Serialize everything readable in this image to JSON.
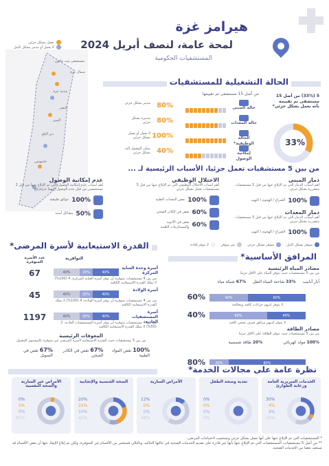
{
  "header": {
    "brand": "هيرامز غزة",
    "title": "لمحة عامة، لنصف أبريل 2024",
    "subtitle": "المستشفيات الحكومية"
  },
  "map": {
    "legend": [
      "يعمل بشكل جزئي",
      "لا يعمل أو مدمر بشكل كامل"
    ],
    "labels": [
      "شمال غزة",
      "مدينة غزة",
      "دير البلح",
      "خانيونس",
      "رفح",
      "النصر",
      "اليمن",
      "مستشفى بيت حانون"
    ]
  },
  "operational": {
    "title": "الحالة التشغيلية للمستشفيات",
    "note": "من أصل 15 مستشفى تم تقييمها",
    "summary": "5 (33%) من أصل 15 مستشفى تم تقييمه بأنه يعمل بشكل جزئي*",
    "donut_value": "33%",
    "donut_fraction": 0.33,
    "rows": [
      {
        "label": "حالة المبنى",
        "pct": "80%",
        "status": "مدمر بشكل جزئي",
        "on": 8
      },
      {
        "label": "حالة المعدات",
        "pct": "80%",
        "status": "مدمرة بشكل جزئي",
        "on": 8
      },
      {
        "label": "الحالة الوظيفية*",
        "pct": "100%",
        "status": "لا يعمل أو يعمل بشكل جزئي",
        "on": 10
      },
      {
        "label": "إمكانية الوصول",
        "pct": "40%",
        "status": "يمكن الوصول إليه بشكل جزئي",
        "on": 4
      }
    ]
  },
  "reasons": {
    "title": "من بين 5 مستشفيات تعمل جزئيا، الأسباب الرئيسية لـ ...",
    "cols": [
      {
        "head": "دمار المبنى",
        "desc": "أهم أسباب الدمار التي تم الإبلاغ عنها من قبل 5 مستشفيات متضررة بشكل جزئي",
        "items": [
          {
            "pct": "100%",
            "label": "الصراع / الهجوم / النهب"
          }
        ]
      },
      {
        "head": "الاختلال الوظيفي",
        "desc": "أهم أسباب الاختلال الوظيفي التي تم الإبلاغ عنها من قبل 5 مستشفيات تعمل بشكل جزئي",
        "items": [
          {
            "pct": "100%",
            "label": "نقص المعدات الطبية"
          },
          {
            "pct": "60%",
            "label": "نقص في الكادر الصحي"
          },
          {
            "pct": "60%",
            "label": "نقص في الأدوية والمستلزمات الطبية"
          }
        ]
      },
      {
        "head": "عدم إمكانية الوصول",
        "desc": "أهم أسباب عدم إمكانية الوصول التي تم الإبلاغ عنها من قبل 2 مستشفيين من قبل عدم الوصول إليهما جزئيا",
        "items": [
          {
            "pct": "100%",
            "label": "عوائق طبيعية"
          },
          {
            "pct": "50%",
            "label": "مشاكل أمنية"
          }
        ]
      }
    ],
    "equip": {
      "head": "دمار المعدات",
      "desc": "أهم أسباب الدمار التي تم الإبلاغ عنها من قبل 5 مستشفيات متضررة بشكل جزئي",
      "items": [
        {
          "pct": "100%",
          "label": "الصراع / الهجوم / النهب"
        }
      ]
    }
  },
  "utilities": {
    "title": "المرافق الأساسية*",
    "legend": [
      "متوفر بشكل كامل",
      "متوفر بشكل جزئي",
      "غير متوفر",
      "لا تتوفر إفادة"
    ],
    "water": {
      "head": "مصادر المياه الرئيسية",
      "note": "من بين 5 مستشفيات حيث تتوفر المياه على الأقل جزئيا",
      "labels": [
        {
          "pct": "67%",
          "text": "شبكة مياه"
        },
        {
          "pct": "33%",
          "text": "شاحنة المياه النقل"
        },
        {
          "pct": "",
          "text": "آبار أنابيب"
        }
      ],
      "bars": [
        {
          "value": "60%",
          "segs": [
            40,
            60
          ],
          "caption": "لا يتوفر لديهم خزانات كافية ومعالجة"
        },
        {
          "value": "40%",
          "segs": [
            60,
            40
          ],
          "caption": "لا يتوفر لديهم مرافق صرف صحي كافية"
        }
      ]
    },
    "power": {
      "head": "مصادر الطاقة",
      "note": "من بين 5 مستشفيات حيث تتوفر الطاقة على الأقل جزئيا",
      "labels": [
        {
          "pct": "100%",
          "text": "مولد كهربائي"
        },
        {
          "pct": "20%",
          "text": "طاقة شمسية"
        }
      ],
      "bar": {
        "value": "80%",
        "segs": [
          20,
          80
        ],
        "caption": "لا يتوفر لديهم طاقة كافية ومستمرة"
      }
    }
  },
  "capacity": {
    "title": "القدرة الاستيعابية لأسرة المرضى*",
    "col_head": "التوافرية",
    "count_head": "عدد الأسرة المتوفرة",
    "rows": [
      {
        "name": "أسرة وحدة العناية المركزة",
        "count": "67",
        "segs": [
          40,
          20,
          40
        ],
        "note": "من بين 4 مستشفيات متوفرة أن توفر أسرة العناية المركزة، 4 (100%) لا تملك القدرة الاستيعابية الكافية"
      },
      {
        "name": "أسرة الولادة",
        "count": "45",
        "segs": [
          40,
          20,
          40
        ],
        "note": "من بين 4 مستشفيات متوفرة أن توفر أسرة الولادة، 4 (100%) لا تملك القدرة الاستيعابية الكافية"
      },
      {
        "name": "أسرة المستشفيات العادية",
        "count": "1197",
        "segs": [
          40,
          20,
          40
        ],
        "note": "من بين 4 مستشفيات متوفرة أن توفر أسرة المستشفيات العادية، 2 (50%) لا تملك القدرة الاستيعابية الكافية"
      }
    ],
    "obstacles": {
      "head": "المعوقات الرئيسية",
      "note": "من بين 5 مستشفيات حيث القدرة الاستيعابية لأسرة المرضى غير متوفرة بالمستوى المقبول",
      "items": [
        {
          "pct": "100%",
          "label": "نقص المواد الطبية"
        },
        {
          "pct": "67%",
          "label": "نقص في الكادر الصحي"
        },
        {
          "pct": "67%",
          "label": "نقص في التمويل"
        }
      ]
    }
  },
  "services": {
    "title": "نظرة عامة على مجالات الخدمة*",
    "cards": [
      {
        "name": "الخدمات السريرية العامة ورعاية الطوارئ",
        "vals": [
          "30%",
          "4%",
          "4%",
          "19%"
        ],
        "fracs": [
          0.3,
          0.04,
          0.04,
          0.19
        ]
      },
      {
        "name": "تغذية وصحة الطفل",
        "vals": [
          "0%",
          "0%",
          "0%",
          "0%"
        ],
        "fracs": [
          0,
          0,
          0,
          0
        ]
      },
      {
        "name": "الأمراض السارية",
        "vals": [
          "12%",
          "0%",
          "0%",
          "48%"
        ],
        "fracs": [
          0.12,
          0,
          0,
          0.48
        ]
      },
      {
        "name": "الصحة الجنسية والإنجابية",
        "vals": [
          "20%",
          "25%",
          "10%",
          "45%"
        ],
        "fracs": [
          0.2,
          0.25,
          0.1,
          0.45
        ]
      },
      {
        "name": "الأمراض غير السارية والصحة النفسية",
        "vals": [
          "0%",
          "5%",
          "0%",
          "95%"
        ],
        "fracs": [
          0,
          0.05,
          0,
          0.95
        ]
      }
    ]
  },
  "footnotes": [
    "* المستشفيات التي تم الإبلاغ عنها على أنها تعمل بشكل جزئي وتستجيب لاحتياجات المرضى.",
    "** من أصل 5 مستشفيات، المستشفيات التي تم الإبلاغ عنها بأنها غير قادرة على تقديم الخدمات الصحية في حالتها الحالية، وبالتالي فستعتبر من الأقسام غير المتوفرة، ولكن تم إبلاغ الإيفاد عنها أن بعض الأقسام قد تستعيد بعضا من الخدمات الصحية."
  ],
  "colors": {
    "primary": "#3a3f8f",
    "accent": "#f0a030",
    "bar_dark": "#5a74c4",
    "bar_mid": "#9aa6d8",
    "bar_light": "#c9ccde"
  }
}
